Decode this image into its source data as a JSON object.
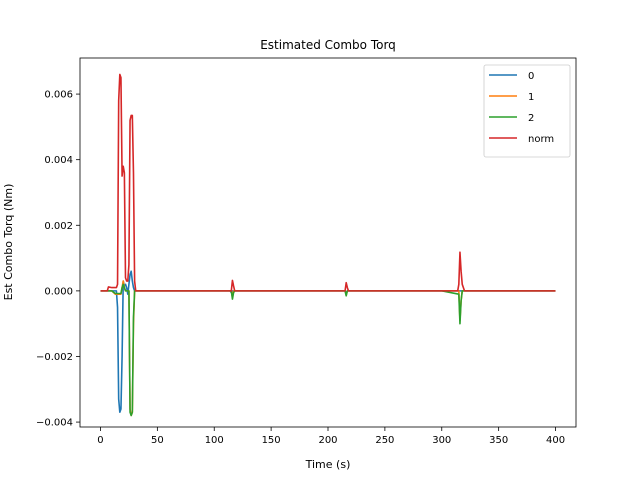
{
  "chart_data": {
    "type": "line",
    "title": "Estimated Combo Torq",
    "xlabel": "Time (s)",
    "ylabel": "Est Combo Torq (Nm)",
    "xlim": [
      -18,
      418
    ],
    "ylim": [
      -0.00415,
      0.0071
    ],
    "xticks": [
      0,
      50,
      100,
      150,
      200,
      250,
      300,
      350,
      400
    ],
    "xtick_labels": [
      "0",
      "50",
      "100",
      "150",
      "200",
      "250",
      "300",
      "350",
      "400"
    ],
    "yticks": [
      -0.004,
      -0.002,
      0.0,
      0.002,
      0.004,
      0.006
    ],
    "ytick_labels": [
      "−0.004",
      "−0.002",
      "0.000",
      "0.002",
      "0.004",
      "0.006"
    ],
    "grid": false,
    "legend_position": "top-right",
    "series": [
      {
        "name": "0",
        "color": "#1f77b4",
        "points": [
          [
            0,
            0
          ],
          [
            14,
            0
          ],
          [
            15,
            -0.0005
          ],
          [
            16,
            -0.0033
          ],
          [
            17,
            -0.0037
          ],
          [
            18,
            -0.0036
          ],
          [
            19,
            -0.002
          ],
          [
            20,
            0.0003
          ],
          [
            21,
            0.00015
          ],
          [
            22,
            0.0002
          ],
          [
            23,
            0.0001
          ],
          [
            24,
            -0.0001
          ],
          [
            25,
            0.0002
          ],
          [
            26,
            0.0005
          ],
          [
            27,
            0.0006
          ],
          [
            28,
            0.0003
          ],
          [
            29,
            0.0001
          ],
          [
            30,
            0.0
          ],
          [
            50,
            0
          ],
          [
            100,
            0
          ],
          [
            114,
            0
          ],
          [
            115,
            -5e-05
          ],
          [
            116,
            0.0
          ],
          [
            200,
            0
          ],
          [
            215,
            0
          ],
          [
            216,
            -4e-05
          ],
          [
            217,
            0
          ],
          [
            300,
            0
          ],
          [
            315,
            0
          ],
          [
            316,
            0
          ],
          [
            400,
            0
          ]
        ]
      },
      {
        "name": "1",
        "color": "#ff7f0e",
        "points": [
          [
            0,
            0
          ],
          [
            10,
            0
          ],
          [
            13,
            -0.0001
          ],
          [
            18,
            -0.0001
          ],
          [
            19,
            0.0001
          ],
          [
            20,
            0.0003
          ],
          [
            21,
            0.0001
          ],
          [
            22,
            0.0
          ],
          [
            25,
            0.0
          ],
          [
            26,
            -0.0036
          ],
          [
            27,
            -0.0038
          ],
          [
            28,
            -0.0037
          ],
          [
            29,
            -0.001
          ],
          [
            30,
            0.0
          ],
          [
            100,
            0
          ],
          [
            115,
            0
          ],
          [
            116,
            -0.0002
          ],
          [
            117,
            0
          ],
          [
            200,
            0
          ],
          [
            215,
            0
          ],
          [
            216,
            -0.00012
          ],
          [
            217,
            0
          ],
          [
            300,
            0
          ],
          [
            315,
            0
          ],
          [
            316,
            -0.0009
          ],
          [
            317,
            -0.0003
          ],
          [
            318,
            0
          ],
          [
            400,
            0
          ]
        ]
      },
      {
        "name": "2",
        "color": "#2ca02c",
        "points": [
          [
            0,
            0
          ],
          [
            10,
            0
          ],
          [
            13,
            -8e-05
          ],
          [
            18,
            -8e-05
          ],
          [
            19,
            0.0001
          ],
          [
            20,
            0.0002
          ],
          [
            21,
            0.0001
          ],
          [
            22,
            0.0
          ],
          [
            25,
            0.0
          ],
          [
            26,
            -0.0037
          ],
          [
            27,
            -0.0038
          ],
          [
            28,
            -0.0037
          ],
          [
            29,
            -0.0008
          ],
          [
            30,
            0.0
          ],
          [
            100,
            0
          ],
          [
            115,
            0
          ],
          [
            116,
            -0.00025
          ],
          [
            117,
            -5e-05
          ],
          [
            118,
            0
          ],
          [
            200,
            0
          ],
          [
            215,
            0
          ],
          [
            216,
            -0.00015
          ],
          [
            217,
            0
          ],
          [
            300,
            0
          ],
          [
            315,
            -0.0001
          ],
          [
            316,
            -0.001
          ],
          [
            317,
            -0.0003
          ],
          [
            318,
            0
          ],
          [
            400,
            0
          ]
        ]
      },
      {
        "name": "norm",
        "color": "#d62728",
        "points": [
          [
            0,
            0
          ],
          [
            6,
            0
          ],
          [
            7,
            0.00012
          ],
          [
            10,
            0.0001
          ],
          [
            14,
            0.0001
          ],
          [
            15,
            0.0002
          ],
          [
            16,
            0.0058
          ],
          [
            17,
            0.0066
          ],
          [
            18,
            0.0065
          ],
          [
            19,
            0.0035
          ],
          [
            20,
            0.0038
          ],
          [
            21,
            0.0036
          ],
          [
            22,
            0.0004
          ],
          [
            23,
            0.0003
          ],
          [
            24,
            0.0003
          ],
          [
            25,
            0.0008
          ],
          [
            26,
            0.0052
          ],
          [
            27,
            0.00535
          ],
          [
            28,
            0.00535
          ],
          [
            29,
            0.0036
          ],
          [
            30,
            0.0003
          ],
          [
            31,
            0.0
          ],
          [
            50,
            0
          ],
          [
            100,
            0
          ],
          [
            115,
            0
          ],
          [
            116,
            0.00032
          ],
          [
            117,
            0.00015
          ],
          [
            118,
            0
          ],
          [
            200,
            0
          ],
          [
            215,
            0
          ],
          [
            216,
            0.00025
          ],
          [
            217,
            0.0001
          ],
          [
            218,
            0
          ],
          [
            300,
            0
          ],
          [
            314,
            0
          ],
          [
            315,
            0.0002
          ],
          [
            316,
            0.00118
          ],
          [
            317,
            0.0006
          ],
          [
            318,
            0.0002
          ],
          [
            320,
            0
          ],
          [
            400,
            0
          ]
        ]
      }
    ]
  }
}
